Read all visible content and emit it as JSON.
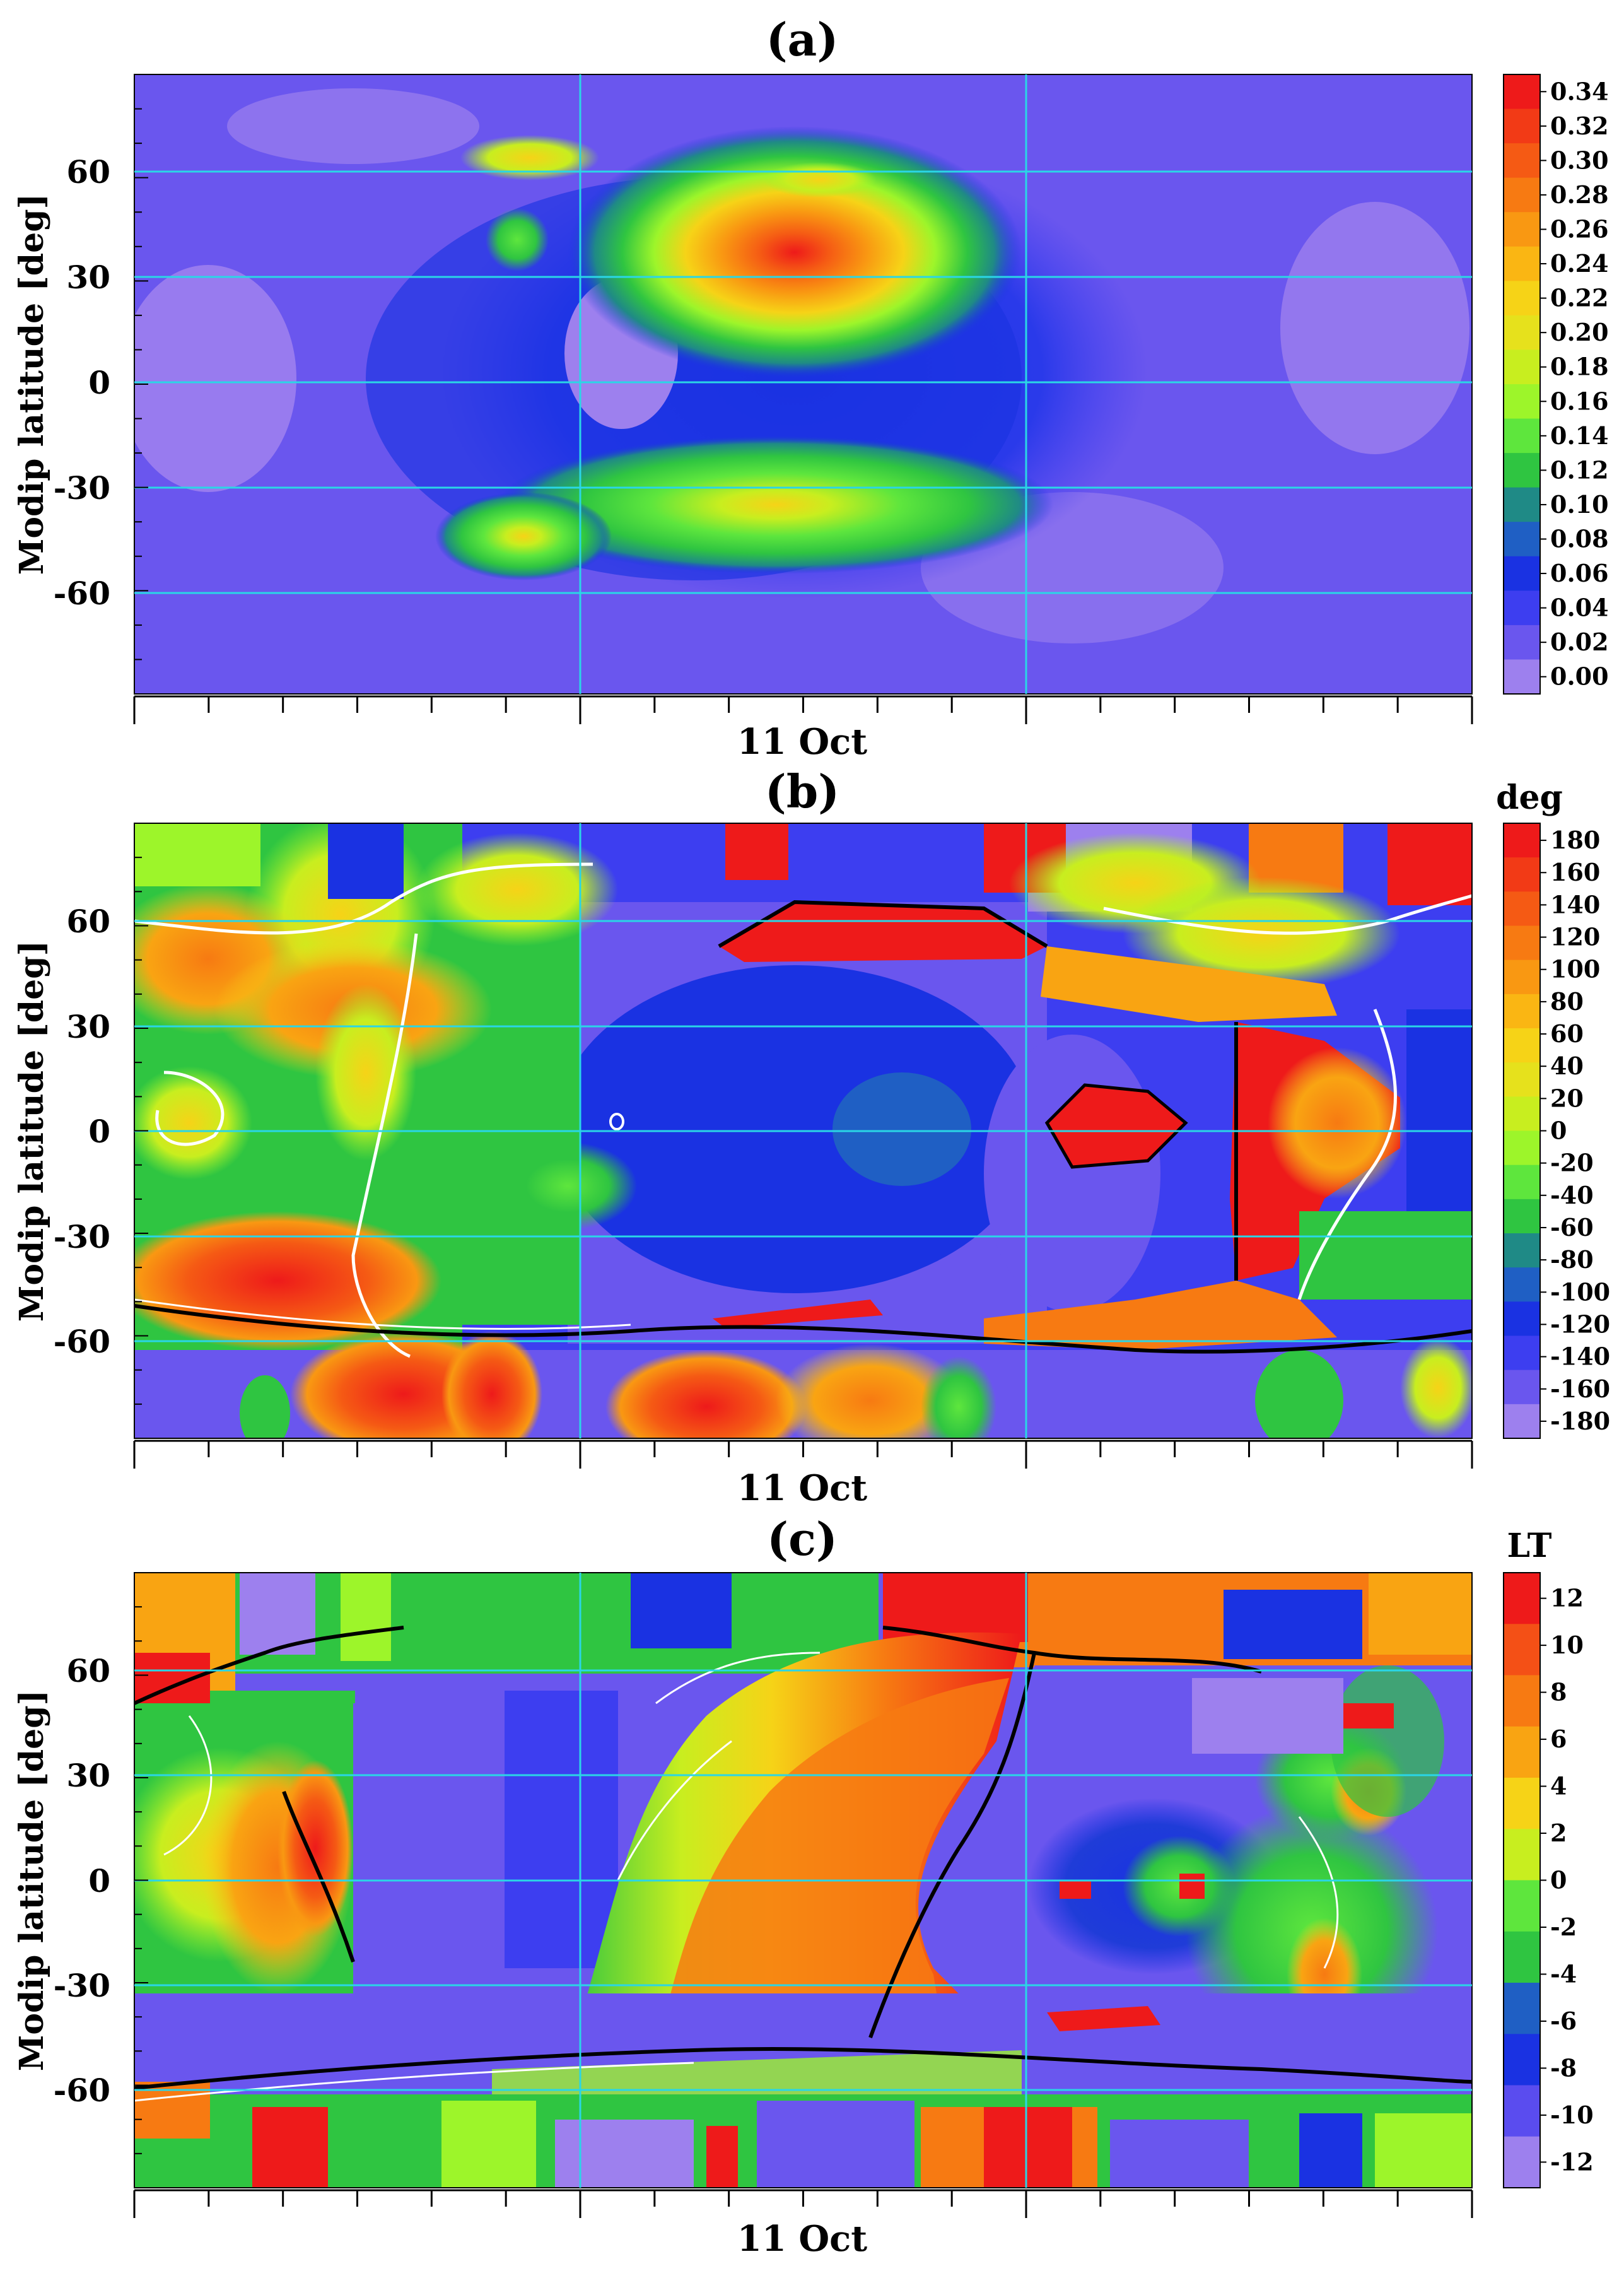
{
  "chart_data": [
    {
      "type": "heatmap",
      "title": "(a)",
      "ylabel": "Modip latitude [deg]",
      "xlabel": "11 Oct",
      "y_ticks": [
        "60",
        "30",
        "0",
        "-30",
        "-60"
      ],
      "ylim": [
        -90,
        90
      ],
      "colorbar": {
        "unit": "",
        "ticks": [
          "0.34",
          "0.32",
          "0.30",
          "0.28",
          "0.26",
          "0.24",
          "0.22",
          "0.20",
          "0.18",
          "0.16",
          "0.14",
          "0.12",
          "0.10",
          "0.08",
          "0.06",
          "0.04",
          "0.02",
          "0.00"
        ],
        "colors": [
          "#ee1a1a",
          "#f23a16",
          "#f55a14",
          "#f77a12",
          "#f99812",
          "#fab613",
          "#f6d317",
          "#e6e11c",
          "#c8ee1f",
          "#9df52a",
          "#5ee63d",
          "#2fc541",
          "#1f8a86",
          "#1f5fc4",
          "#1a32e2",
          "#3d3ef0",
          "#6a56ee",
          "#9d80ee"
        ]
      },
      "features": [
        {
          "x": 0.52,
          "y": 35,
          "value": 0.34
        },
        {
          "x": 0.52,
          "y": -35,
          "value": 0.22
        },
        {
          "x": 0.3,
          "y": -42,
          "value": 0.2
        },
        {
          "x": 0.28,
          "y": 65,
          "value": 0.18
        }
      ]
    },
    {
      "type": "heatmap",
      "title": "(b)",
      "ylabel": "Modip latitude [deg]",
      "xlabel": "11 Oct",
      "y_ticks": [
        "60",
        "30",
        "0",
        "-30",
        "-60"
      ],
      "ylim": [
        -90,
        90
      ],
      "colorbar": {
        "unit": "deg",
        "ticks": [
          "180",
          "160",
          "140",
          "120",
          "100",
          "80",
          "60",
          "40",
          "20",
          "0",
          "-20",
          "-40",
          "-60",
          "-80",
          "-100",
          "-120",
          "-140",
          "-160",
          "-180"
        ],
        "colors": [
          "#ee1a1a",
          "#f23a16",
          "#f55a14",
          "#f77a12",
          "#f99812",
          "#fab613",
          "#f6d317",
          "#e6e11c",
          "#c8ee1f",
          "#9df52a",
          "#5ee63d",
          "#2fc541",
          "#1f8a86",
          "#1f5fc4",
          "#1a32e2",
          "#3d3ef0",
          "#6a56ee",
          "#9d80ee"
        ]
      }
    },
    {
      "type": "heatmap",
      "title": "(c)",
      "ylabel": "Modip latitude [deg]",
      "xlabel": "11 Oct",
      "y_ticks": [
        "60",
        "30",
        "0",
        "-30",
        "-60"
      ],
      "ylim": [
        -90,
        90
      ],
      "colorbar": {
        "unit": "LT",
        "ticks": [
          "12",
          "10",
          "8",
          "6",
          "4",
          "2",
          "0",
          "-2",
          "-4",
          "-6",
          "-8",
          "-10",
          "-12"
        ],
        "colors": [
          "#ee1a1a",
          "#f45016",
          "#f77a12",
          "#f9a412",
          "#f6d317",
          "#c8ee1f",
          "#5ee63d",
          "#2fc541",
          "#1f5fc4",
          "#1a32e2",
          "#5a4cef",
          "#9d80ee"
        ]
      }
    }
  ]
}
